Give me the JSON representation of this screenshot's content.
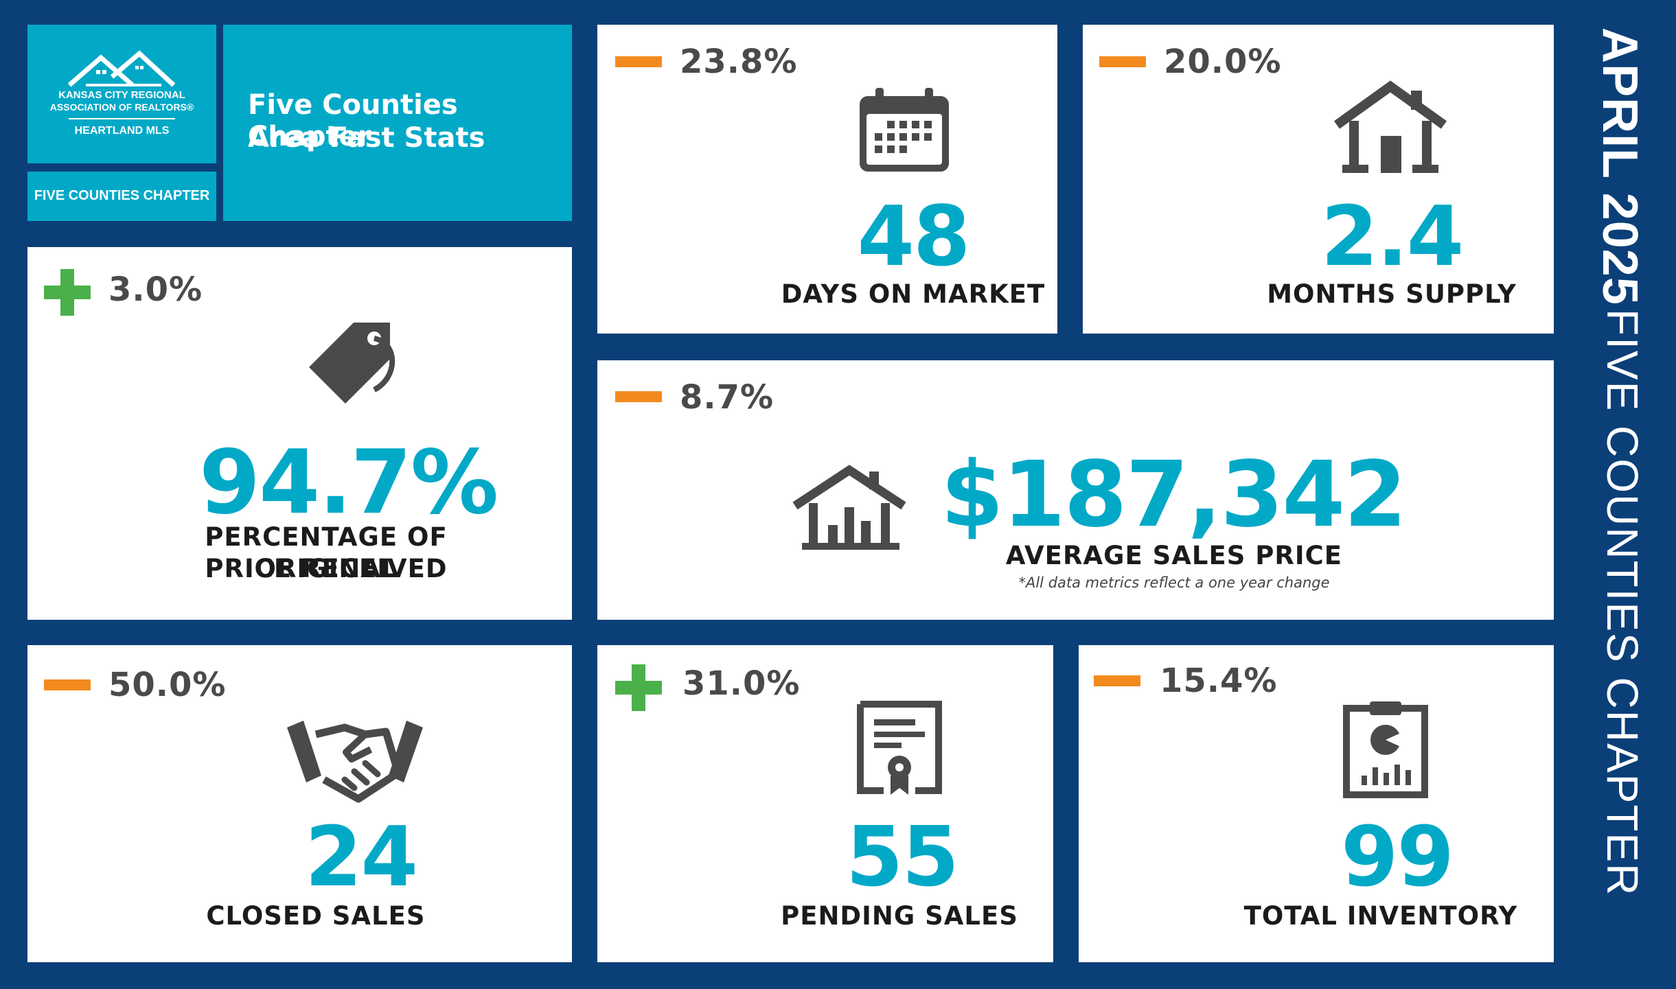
{
  "logo": {
    "org_line1": "KANSAS CITY REGIONAL",
    "org_line2": "ASSOCIATION OF REALTORS®",
    "org_line3": "HEARTLAND MLS",
    "chapter_badge": "FIVE COUNTIES CHAPTER"
  },
  "header": {
    "title_line1": "Five Counties Chapter",
    "title_line2": "Area Fast Stats"
  },
  "sidebar": {
    "date": "APRIL 2025",
    "chapter": "FIVE COUNTIES CHAPTER"
  },
  "stats": {
    "price_received": {
      "change": "3.0%",
      "direction": "up",
      "value": "94.7%",
      "label_line1": "PERCENTAGE OF ORIGINAL",
      "label_line2": "PRICE RECEIVED",
      "icon": "price-tag-icon"
    },
    "days_on_market": {
      "change": "23.8%",
      "direction": "down",
      "value": "48",
      "label": "DAYS ON MARKET",
      "icon": "calendar-icon"
    },
    "months_supply": {
      "change": "20.0%",
      "direction": "down",
      "value": "2.4",
      "label": "MONTHS SUPPLY",
      "icon": "house-icon"
    },
    "avg_sales_price": {
      "change": "8.7%",
      "direction": "down",
      "value": "$187,342",
      "label": "AVERAGE SALES PRICE",
      "note": "*All data metrics reflect a one year change",
      "icon": "house-chart-icon"
    },
    "closed_sales": {
      "change": "50.0%",
      "direction": "down",
      "value": "24",
      "label": "CLOSED SALES",
      "icon": "handshake-icon"
    },
    "pending_sales": {
      "change": "31.0%",
      "direction": "up",
      "value": "55",
      "label": "PENDING SALES",
      "icon": "certificate-icon"
    },
    "total_inventory": {
      "change": "15.4%",
      "direction": "down",
      "value": "99",
      "label": "TOTAL INVENTORY",
      "icon": "clipboard-chart-icon"
    }
  },
  "colors": {
    "background": "#0b3f78",
    "accent": "#02a9c7",
    "down": "#f38a1f",
    "up": "#4bb04a",
    "icon": "#4a4a4a"
  }
}
